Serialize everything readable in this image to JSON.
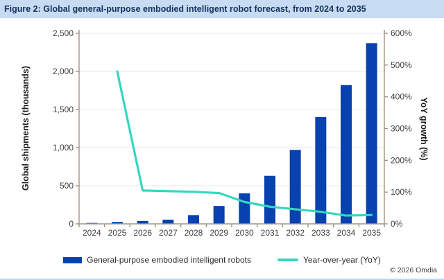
{
  "figure": {
    "title": "Figure 2: Global general-purpose embodied intelligent robot forecast, from 2024 to 2035",
    "copyright": "© 2026 Omdia"
  },
  "colors": {
    "bar": "#0742ae",
    "line": "#36d6c0",
    "title_bg": "#c7dbf2",
    "title_text": "#16325c",
    "grid": "#e9e9e9",
    "axis": "#a09385",
    "tick_text": "#404040",
    "rule": "#bdd7ee"
  },
  "legend": {
    "items": [
      {
        "label": "General-purpose embodied intelligent robots",
        "marker": "rect"
      },
      {
        "label": "Year-over-year (YoY)",
        "marker": "line"
      }
    ]
  },
  "chart_data": {
    "type": "bar",
    "subtype": "combo-bar-line",
    "title": "Figure 2: Global general-purpose embodied intelligent robot forecast, from 2024 to 2035",
    "categories": [
      "2024",
      "2025",
      "2026",
      "2027",
      "2028",
      "2029",
      "2030",
      "2031",
      "2032",
      "2033",
      "2034",
      "2035"
    ],
    "series": [
      {
        "name": "General-purpose embodied intelligent robots",
        "type": "bar",
        "axis": "left",
        "color": "#0742ae",
        "values": [
          12,
          25,
          38,
          55,
          115,
          235,
          400,
          630,
          970,
          1400,
          1820,
          2370
        ]
      },
      {
        "name": "Year-over-year (YoY)",
        "type": "line",
        "axis": "right",
        "color": "#36d6c0",
        "values": [
          null,
          480,
          105,
          103,
          101,
          97,
          69,
          54,
          46,
          38,
          26,
          28
        ]
      }
    ],
    "left_axis": {
      "label": "Global shipments (thousands)",
      "min": 0,
      "max": 2500,
      "step": 500,
      "tick_labels": [
        "0",
        "500",
        "1,000",
        "1,500",
        "2,000",
        "2,500"
      ]
    },
    "right_axis": {
      "label": "YoY growth (%)",
      "min": 0,
      "max": 600,
      "step": 100,
      "tick_labels": [
        "0%",
        "100%",
        "200%",
        "300%",
        "400%",
        "500%",
        "600%"
      ]
    },
    "grid": true,
    "legend_position": "bottom"
  }
}
